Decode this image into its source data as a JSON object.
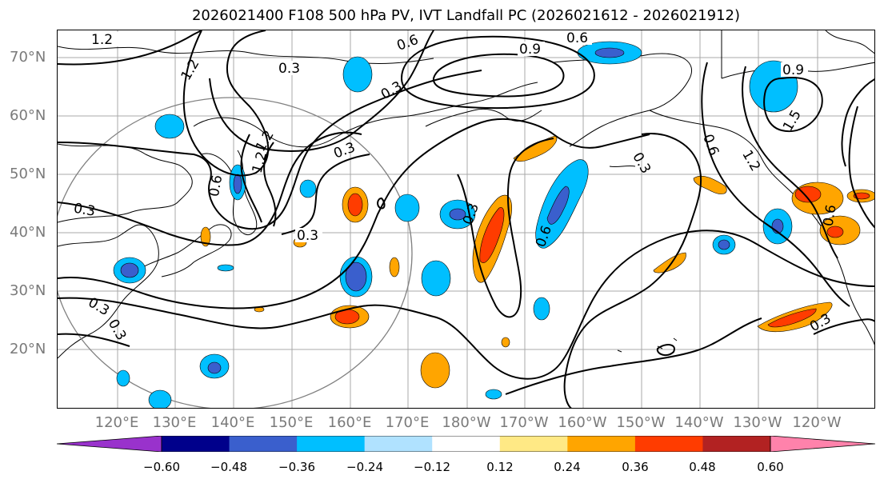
{
  "title": "2026021400 F108 500 hPa PV, IVT Landfall PC (2026021612 - 2026021912)",
  "lat_labels": [
    "70°N",
    "60°N",
    "50°N",
    "40°N",
    "30°N",
    "20°N"
  ],
  "lon_labels": [
    "120°E",
    "130°E",
    "140°E",
    "150°E",
    "160°E",
    "170°E",
    "180°W",
    "170°W",
    "160°W",
    "150°W",
    "140°W",
    "130°W",
    "120°W"
  ],
  "contour_labels": [
    "1.2",
    "1.2",
    "0.3",
    "0.6",
    "0.9",
    "0.6",
    "0.9",
    "0.3",
    "1.2",
    "1.5",
    "1.2",
    "0.6",
    "0.3",
    "0.3",
    "0.3",
    "0.6",
    "0.3",
    "0.6",
    "0.3",
    "0.3",
    "0.3",
    "0.6",
    "1.2",
    "0.3"
  ],
  "colorbar": {
    "ticks": [
      "−0.60",
      "−0.48",
      "−0.36",
      "−0.24",
      "−0.12",
      "0.12",
      "0.24",
      "0.36",
      "0.48",
      "0.60"
    ],
    "colors": [
      "#9932cc",
      "#00008b",
      "#3a5fcd",
      "#00bfff",
      "#b0e2ff",
      "#ffffff",
      "#ffe985",
      "#ffa500",
      "#ff3c00",
      "#b22222",
      "#ff82ab"
    ]
  }
}
